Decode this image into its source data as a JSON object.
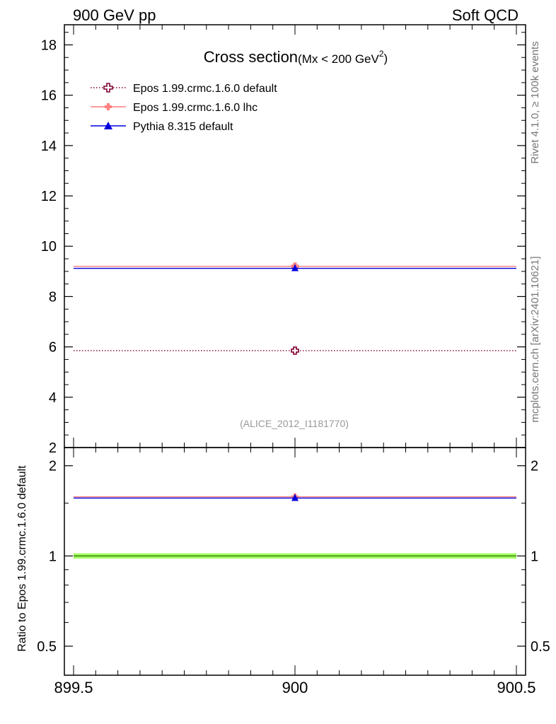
{
  "header": {
    "left_label": "900 GeV pp",
    "right_label": "Soft QCD"
  },
  "side_labels": {
    "rivet": "Rivet 4.1.0, ≥ 100k events",
    "mcplots": "mcplots.cern.ch [arXiv:2401.10621]"
  },
  "chart_data": [
    {
      "type": "line",
      "title": "Cross section",
      "title_suffix": "(Mx < 200 GeV",
      "title_suffix_sup": "2",
      "title_suffix_end": ")",
      "analysis_label": "(ALICE_2012_I1181770)",
      "xlim": [
        899.5,
        900.5
      ],
      "ylim": [
        2,
        18.8
      ],
      "yticks": [
        2,
        4,
        6,
        8,
        10,
        12,
        14,
        16,
        18
      ],
      "yticklabels": [
        "2",
        "4",
        "6",
        "8",
        "10",
        "12",
        "14",
        "16",
        "18"
      ],
      "grid": false,
      "legend_position": "top-left",
      "series": [
        {
          "name": "Epos 1.99.crmc.1.6.0 default",
          "x": [
            900
          ],
          "xerr": [
            0.5
          ],
          "y": [
            5.85
          ],
          "color": "#800033",
          "marker": "open-cross",
          "line": "dotted"
        },
        {
          "name": "Epos 1.99.crmc.1.6.0 lhc",
          "x": [
            900
          ],
          "xerr": [
            0.5
          ],
          "y": [
            9.2
          ],
          "color": "#ff7f7f",
          "marker": "cross",
          "line": "solid"
        },
        {
          "name": "Pythia 8.315 default",
          "x": [
            900
          ],
          "xerr": [
            0.5
          ],
          "y": [
            9.12
          ],
          "color": "#0000dd",
          "marker": "triangle",
          "line": "solid"
        }
      ]
    },
    {
      "type": "line",
      "ylabel": "Ratio to Epos 1.99.crmc.1.6.0 default",
      "xlim": [
        899.5,
        900.5
      ],
      "ylim": [
        0.4,
        2.3
      ],
      "log_y": true,
      "xticks": [
        899.5,
        900,
        900.5
      ],
      "xticklabels": [
        "899.5",
        "900",
        "900.5"
      ],
      "yticks": [
        0.5,
        1,
        2
      ],
      "yticklabels": [
        "0.5",
        "1",
        "2"
      ],
      "reference": {
        "y": 1,
        "band": [
          0.99,
          1.01
        ],
        "band_color": "#a5ff66",
        "line_color": "#2e7d00"
      },
      "series": [
        {
          "name": "Epos 1.99.crmc.1.6.0 lhc",
          "x": [
            900
          ],
          "y": [
            1.575
          ],
          "color": "#ff7f7f"
        },
        {
          "name": "Pythia 8.315 default",
          "x": [
            900
          ],
          "y": [
            1.56
          ],
          "color": "#0000dd"
        }
      ]
    }
  ]
}
